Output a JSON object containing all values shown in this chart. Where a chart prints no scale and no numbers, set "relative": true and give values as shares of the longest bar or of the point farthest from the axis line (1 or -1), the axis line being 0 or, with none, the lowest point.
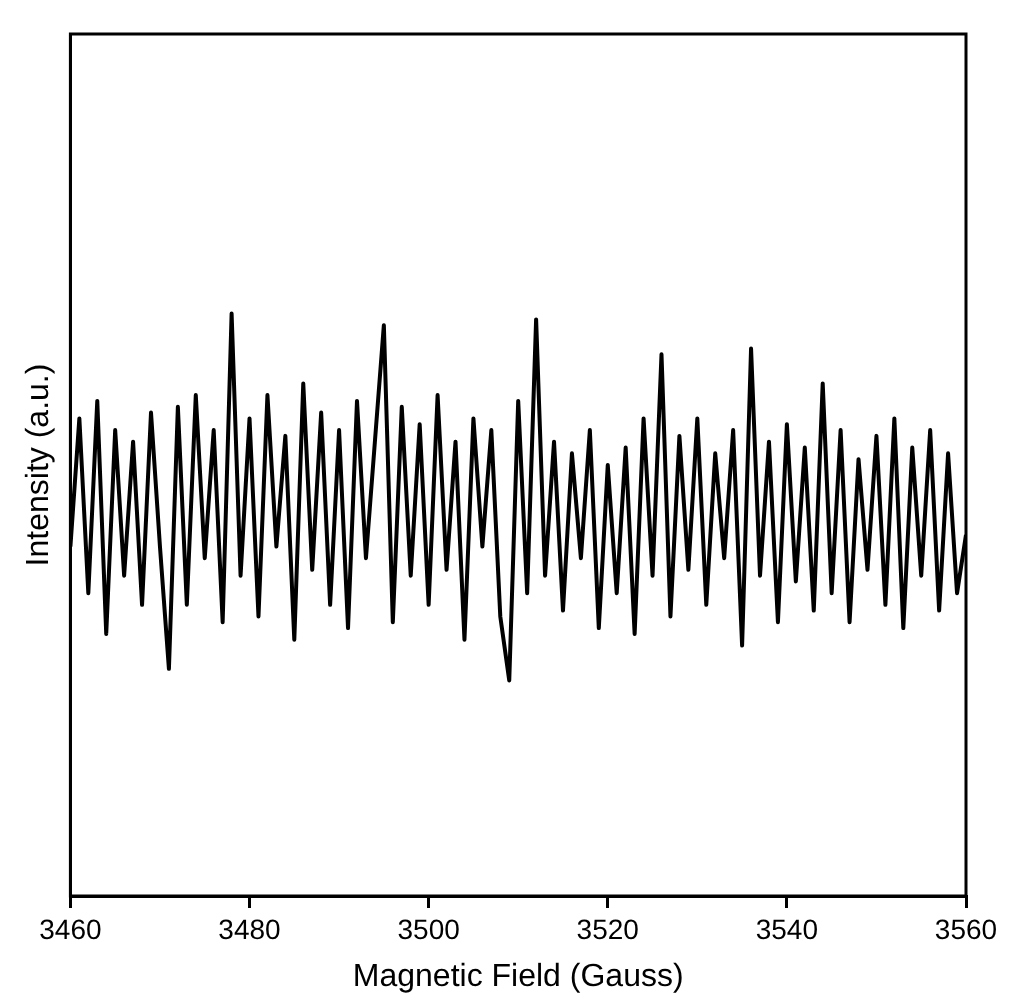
{
  "chart_data": {
    "type": "line",
    "xlabel": "Magnetic Field (Gauss)",
    "ylabel": "Intensity (a.u.)",
    "relative": true,
    "xlim": [
      3460,
      3560
    ],
    "xticks": [
      3460,
      3480,
      3500,
      3520,
      3540,
      3560
    ],
    "grid": false,
    "legend": false,
    "marker": "none",
    "line_style": "solid",
    "series": [
      {
        "color": "#000000",
        "x": [
          3460,
          3461,
          3462,
          3463,
          3464,
          3465,
          3466,
          3467,
          3468,
          3469,
          3470,
          3471,
          3472,
          3473,
          3474,
          3475,
          3476,
          3477,
          3478,
          3479,
          3480,
          3481,
          3482,
          3483,
          3484,
          3485,
          3486,
          3487,
          3488,
          3489,
          3490,
          3491,
          3492,
          3493,
          3494,
          3495,
          3496,
          3497,
          3498,
          3499,
          3500,
          3501,
          3502,
          3503,
          3504,
          3505,
          3506,
          3507,
          3508,
          3509,
          3510,
          3511,
          3512,
          3513,
          3514,
          3515,
          3516,
          3517,
          3518,
          3519,
          3520,
          3521,
          3522,
          3523,
          3524,
          3525,
          3526,
          3527,
          3528,
          3529,
          3530,
          3531,
          3532,
          3533,
          3534,
          3535,
          3536,
          3537,
          3538,
          3539,
          3540,
          3541,
          3542,
          3543,
          3544,
          3545,
          3546,
          3547,
          3548,
          3549,
          3550,
          3551,
          3552,
          3553,
          3554,
          3555,
          3556,
          3557,
          3558,
          3559,
          3560
        ],
        "values": [
          0.6,
          0.82,
          0.52,
          0.85,
          0.45,
          0.8,
          0.55,
          0.78,
          0.5,
          0.83,
          0.6,
          0.39,
          0.84,
          0.5,
          0.86,
          0.58,
          0.8,
          0.47,
          1.0,
          0.55,
          0.82,
          0.48,
          0.86,
          0.6,
          0.79,
          0.44,
          0.88,
          0.56,
          0.83,
          0.5,
          0.8,
          0.46,
          0.85,
          0.58,
          0.78,
          0.98,
          0.47,
          0.84,
          0.55,
          0.81,
          0.5,
          0.86,
          0.56,
          0.78,
          0.44,
          0.82,
          0.6,
          0.8,
          0.48,
          0.37,
          0.85,
          0.52,
          0.99,
          0.55,
          0.78,
          0.49,
          0.76,
          0.58,
          0.8,
          0.46,
          0.74,
          0.52,
          0.77,
          0.45,
          0.82,
          0.55,
          0.93,
          0.48,
          0.79,
          0.56,
          0.82,
          0.5,
          0.76,
          0.58,
          0.8,
          0.43,
          0.94,
          0.55,
          0.78,
          0.47,
          0.81,
          0.54,
          0.77,
          0.49,
          0.88,
          0.52,
          0.8,
          0.47,
          0.75,
          0.56,
          0.79,
          0.5,
          0.82,
          0.46,
          0.77,
          0.55,
          0.8,
          0.49,
          0.76,
          0.52,
          0.62
        ]
      }
    ]
  }
}
